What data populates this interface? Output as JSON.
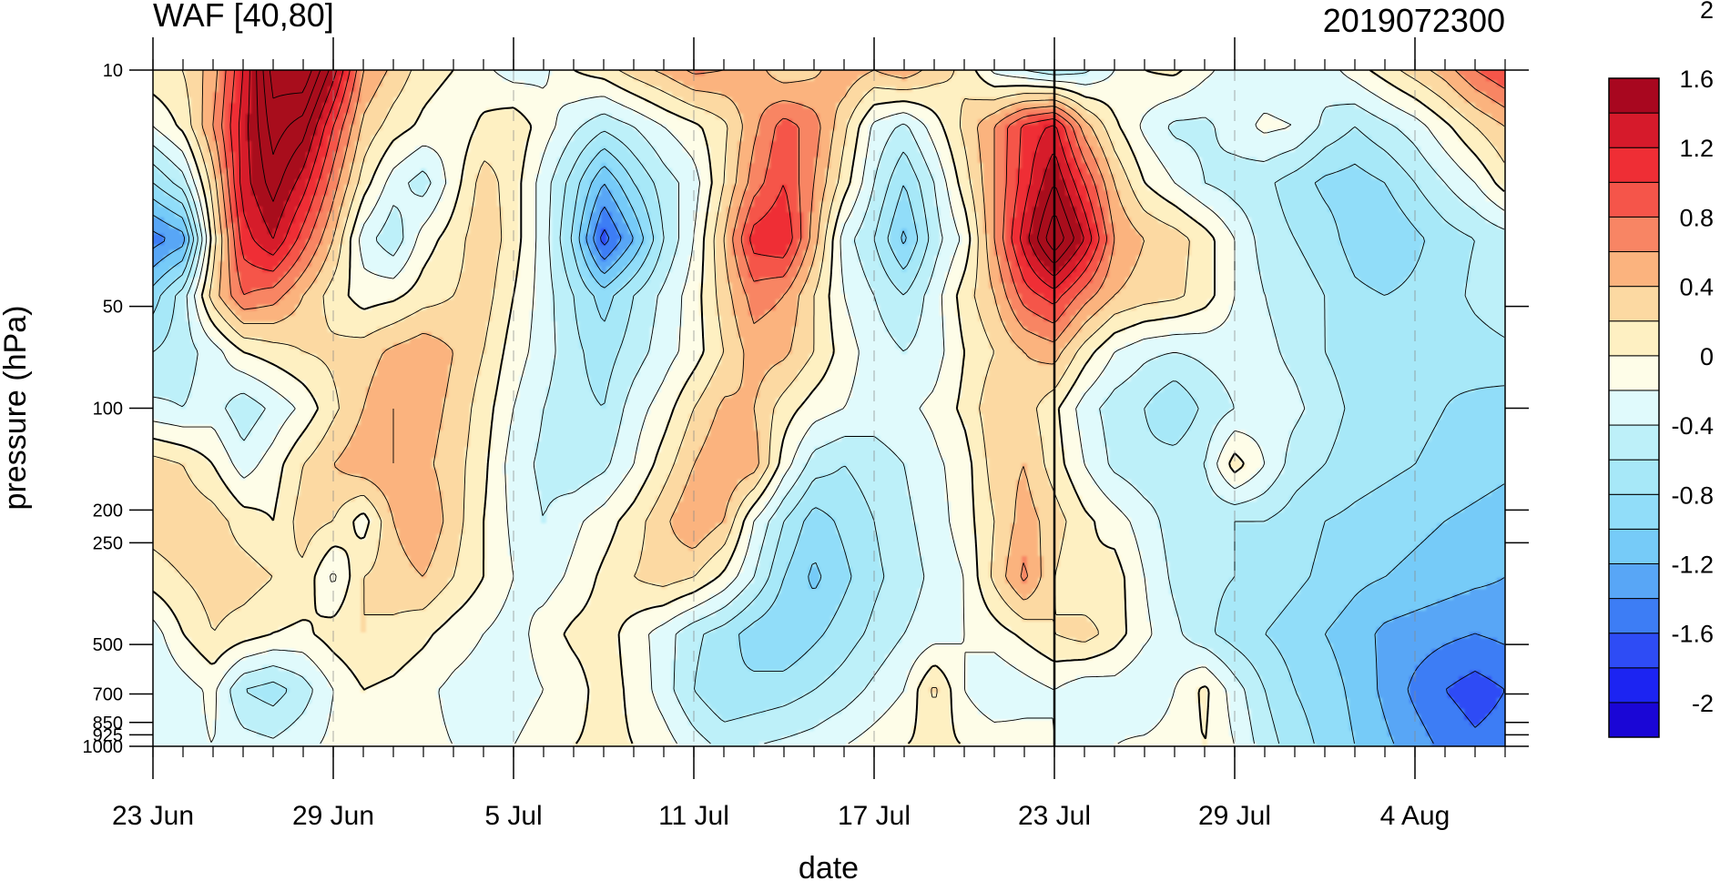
{
  "chart_data": {
    "type": "heatmap",
    "subtype": "filled-contour",
    "title_left": "WAF [40,80]",
    "title_right": "2019072300",
    "xlabel": "date",
    "ylabel": "pressure (hPa)",
    "x_start": "2019-06-23",
    "x_end": "2019-08-07",
    "x_ticks": [
      {
        "date": "2019-06-23",
        "label": "23 Jun"
      },
      {
        "date": "2019-06-29",
        "label": "29 Jun"
      },
      {
        "date": "2019-07-05",
        "label": "5 Jul"
      },
      {
        "date": "2019-07-11",
        "label": "11 Jul"
      },
      {
        "date": "2019-07-17",
        "label": "17 Jul"
      },
      {
        "date": "2019-07-23",
        "label": "23 Jul"
      },
      {
        "date": "2019-07-29",
        "label": "29 Jul"
      },
      {
        "date": "2019-08-04",
        "label": "4 Aug"
      }
    ],
    "analysis_date": "2019-07-23",
    "y_scale": "log",
    "y_reversed": true,
    "ylim": [
      10,
      1000
    ],
    "y_ticks": [
      {
        "value": 10,
        "label": "10"
      },
      {
        "value": 50,
        "label": "50"
      },
      {
        "value": 100,
        "label": "100"
      },
      {
        "value": 200,
        "label": "200"
      },
      {
        "value": 250,
        "label": "250"
      },
      {
        "value": 500,
        "label": "500"
      },
      {
        "value": 700,
        "label": "700"
      },
      {
        "value": 850,
        "label": "850"
      },
      {
        "value": 925,
        "label": "925"
      },
      {
        "value": 1000,
        "label": "1000"
      }
    ],
    "colorbar": {
      "levels": [
        -2.2,
        -2.0,
        -1.8,
        -1.6,
        -1.4,
        -1.2,
        -1.0,
        -0.8,
        -0.6,
        -0.4,
        -0.2,
        0,
        0.2,
        0.4,
        0.6,
        0.8,
        1.0,
        1.2,
        1.4,
        1.6,
        1.8,
        2.0,
        2.2
      ],
      "labels": [
        {
          "value": 2.0,
          "label": "2"
        },
        {
          "value": 1.6,
          "label": "1.6"
        },
        {
          "value": 1.2,
          "label": "1.2"
        },
        {
          "value": 0.8,
          "label": "0.8"
        },
        {
          "value": 0.4,
          "label": "0.4"
        },
        {
          "value": 0,
          "label": "0"
        },
        {
          "value": -0.4,
          "label": "-0.4"
        },
        {
          "value": -0.8,
          "label": "-0.8"
        },
        {
          "value": -1.2,
          "label": "-1.2"
        },
        {
          "value": -1.6,
          "label": "-1.6"
        },
        {
          "value": -2.0,
          "label": "-2"
        }
      ],
      "colors": [
        "#1a06d6",
        "#1c24f2",
        "#2e4cf5",
        "#3d7df5",
        "#58a6f6",
        "#76cbf8",
        "#91ddf9",
        "#a7e8f8",
        "#bdf0f9",
        "#e0fafc",
        "#fefde8",
        "#fef0c2",
        "#fcd9a2",
        "#fbb37e",
        "#f88564",
        "#f5554a",
        "#ef2e35",
        "#d61a2b",
        "#a8071f"
      ]
    },
    "values": [
      [
        0.15,
        0.2,
        0.5,
        1.2,
        2.1,
        2.2,
        1.5,
        0.6,
        0.35,
        0.1,
        0.0,
        -0.15,
        -0.3,
        -0.25,
        0.0,
        0.1,
        0.3,
        0.45,
        0.65,
        0.6,
        0.5,
        0.25,
        0.35,
        0.55,
        0.4,
        0.55,
        0.3,
        0.15,
        -0.25,
        -0.4,
        -0.55,
        -0.45,
        -0.2,
        0.0,
        0.05,
        -0.15,
        -0.3,
        -0.35,
        -0.4,
        -0.3,
        -0.1,
        0.1,
        0.3,
        0.5,
        0.8,
        1.0
      ],
      [
        -0.2,
        0.05,
        0.6,
        1.3,
        1.9,
        1.7,
        1.0,
        0.35,
        0.1,
        -0.05,
        -0.15,
        0.05,
        0.15,
        -0.1,
        -0.35,
        -0.55,
        -0.4,
        -0.2,
        -0.05,
        0.15,
        0.55,
        0.9,
        0.7,
        0.25,
        -0.25,
        -0.45,
        -0.1,
        0.25,
        0.6,
        1.05,
        1.25,
        0.5,
        0.05,
        -0.25,
        -0.45,
        -0.45,
        -0.3,
        -0.15,
        -0.2,
        -0.45,
        -0.6,
        -0.45,
        -0.3,
        -0.05,
        0.2,
        0.4
      ],
      [
        -0.8,
        -0.5,
        0.3,
        1.3,
        1.7,
        1.3,
        0.7,
        0.1,
        -0.3,
        -0.5,
        -0.1,
        0.3,
        0.1,
        -0.3,
        -0.7,
        -1.2,
        -0.8,
        -0.5,
        -0.3,
        0.2,
        0.7,
        1.0,
        0.6,
        0.1,
        -0.4,
        -0.8,
        -0.4,
        0.1,
        0.6,
        1.1,
        1.6,
        1.0,
        0.4,
        0.0,
        -0.2,
        -0.4,
        -0.5,
        -0.55,
        -0.7,
        -0.85,
        -0.9,
        -0.8,
        -0.6,
        -0.4,
        -0.2,
        0.1
      ],
      [
        -1.5,
        -1.3,
        0.1,
        1.1,
        1.4,
        0.9,
        0.4,
        -0.3,
        -0.55,
        -0.1,
        0.1,
        0.35,
        0.1,
        -0.3,
        -0.85,
        -1.7,
        -1.2,
        -0.6,
        -0.2,
        0.4,
        1.1,
        1.2,
        0.5,
        -0.3,
        -0.6,
        -1.05,
        -0.5,
        -0.15,
        0.6,
        1.3,
        2.0,
        1.4,
        0.6,
        0.4,
        0.3,
        0.1,
        -0.2,
        -0.5,
        -0.6,
        -0.7,
        -0.9,
        -1.0,
        -0.85,
        -0.7,
        -0.6,
        -0.5
      ],
      [
        -0.9,
        -0.5,
        0.3,
        0.8,
        0.7,
        0.4,
        0.1,
        -0.1,
        -0.05,
        0.1,
        0.2,
        0.3,
        0.0,
        -0.3,
        -0.6,
        -0.9,
        -0.6,
        -0.35,
        -0.1,
        0.3,
        0.7,
        0.6,
        0.2,
        -0.2,
        -0.4,
        -0.6,
        -0.3,
        0.1,
        0.4,
        0.9,
        1.1,
        0.7,
        0.4,
        0.3,
        0.25,
        0.1,
        -0.2,
        -0.4,
        -0.5,
        -0.6,
        -0.75,
        -0.8,
        -0.75,
        -0.7,
        -0.55,
        -0.45
      ],
      [
        -0.6,
        -0.5,
        -0.3,
        0.0,
        0.1,
        0.2,
        0.25,
        0.3,
        0.45,
        0.55,
        0.4,
        0.2,
        -0.1,
        -0.3,
        -0.55,
        -0.7,
        -0.5,
        -0.3,
        -0.1,
        0.2,
        0.5,
        0.45,
        0.2,
        -0.1,
        -0.3,
        -0.4,
        -0.3,
        0.0,
        0.2,
        0.4,
        0.5,
        0.1,
        -0.2,
        -0.35,
        -0.4,
        -0.35,
        -0.3,
        -0.35,
        -0.45,
        -0.6,
        -0.7,
        -0.75,
        -0.8,
        -0.75,
        -0.7,
        -0.65
      ],
      [
        -0.35,
        -0.4,
        -0.3,
        -0.55,
        -0.35,
        -0.15,
        0.15,
        0.4,
        0.6,
        0.5,
        0.35,
        0.1,
        -0.2,
        -0.4,
        -0.55,
        -0.6,
        -0.3,
        -0.1,
        0.2,
        0.45,
        0.4,
        0.1,
        -0.1,
        -0.2,
        -0.3,
        -0.25,
        -0.15,
        0.05,
        0.35,
        0.3,
        0.05,
        -0.3,
        -0.5,
        -0.6,
        -0.8,
        -0.55,
        -0.4,
        -0.3,
        -0.35,
        -0.5,
        -0.65,
        -0.7,
        -0.75,
        -0.8,
        -0.85,
        -0.9
      ],
      [
        0.3,
        0.2,
        0.0,
        -0.3,
        -0.1,
        0.2,
        0.4,
        0.55,
        0.6,
        0.45,
        0.3,
        0.05,
        -0.3,
        -0.45,
        -0.55,
        -0.45,
        -0.2,
        0.1,
        0.4,
        0.6,
        0.5,
        -0.1,
        -0.5,
        -0.6,
        -0.5,
        -0.4,
        -0.25,
        -0.1,
        0.3,
        0.4,
        0.1,
        -0.2,
        -0.45,
        -0.55,
        -0.5,
        -0.4,
        0.1,
        -0.2,
        -0.5,
        -0.6,
        -0.7,
        -0.75,
        -0.8,
        -0.85,
        -0.9,
        -0.95
      ],
      [
        0.3,
        0.35,
        0.3,
        0.1,
        0.0,
        0.3,
        0.2,
        -0.1,
        0.4,
        0.6,
        0.3,
        0.0,
        -0.25,
        -0.4,
        -0.25,
        -0.1,
        0.1,
        0.35,
        0.6,
        0.4,
        -0.2,
        -0.6,
        -0.9,
        -0.75,
        -0.6,
        -0.45,
        -0.3,
        -0.1,
        0.2,
        0.5,
        0.3,
        0.05,
        -0.1,
        -0.3,
        -0.5,
        -0.55,
        -0.6,
        -0.6,
        -0.7,
        -0.8,
        -0.85,
        -0.9,
        -0.95,
        -1.0,
        -1.05,
        -1.1
      ],
      [
        0.1,
        0.2,
        0.3,
        0.3,
        0.2,
        0.15,
        -0.25,
        0.2,
        0.3,
        0.4,
        0.2,
        0.0,
        -0.2,
        -0.3,
        -0.15,
        0.05,
        0.2,
        0.3,
        0.2,
        -0.05,
        -0.4,
        -0.8,
        -1.05,
        -0.85,
        -0.65,
        -0.5,
        -0.35,
        -0.2,
        0.25,
        0.65,
        0.2,
        0.0,
        0.1,
        -0.2,
        -0.45,
        -0.55,
        -0.6,
        -0.65,
        -0.75,
        -0.85,
        -0.95,
        -1.0,
        -1.05,
        -1.1,
        -1.15,
        -1.2
      ],
      [
        -0.3,
        0.0,
        0.2,
        0.1,
        0.0,
        -0.05,
        0.1,
        0.2,
        0.15,
        0.05,
        -0.1,
        -0.2,
        -0.3,
        -0.1,
        0.05,
        0.1,
        -0.1,
        -0.3,
        -0.55,
        -0.7,
        -0.9,
        -1.0,
        -0.85,
        -0.7,
        -0.55,
        -0.4,
        -0.3,
        -0.2,
        -0.1,
        0.05,
        0.2,
        0.3,
        0.1,
        -0.15,
        -0.35,
        -0.55,
        -0.7,
        -0.8,
        -0.9,
        -1.0,
        -1.1,
        -1.25,
        -1.3,
        -1.35,
        -1.4,
        -1.35
      ],
      [
        -0.4,
        -0.3,
        -0.15,
        -0.6,
        -0.7,
        -0.5,
        -0.2,
        0.0,
        -0.05,
        -0.15,
        -0.25,
        -0.3,
        -0.3,
        -0.2,
        -0.1,
        0.1,
        -0.05,
        -0.3,
        -0.6,
        -0.8,
        -0.75,
        -0.7,
        -0.6,
        -0.5,
        -0.35,
        -0.2,
        0.25,
        -0.2,
        -0.4,
        -0.3,
        -0.2,
        -0.35,
        -0.3,
        -0.4,
        -0.2,
        0.05,
        -0.3,
        -0.6,
        -0.8,
        -0.9,
        -1.05,
        -1.25,
        -1.45,
        -1.6,
        -1.7,
        -1.6
      ],
      [
        -0.3,
        -0.25,
        -0.2,
        -0.3,
        -0.35,
        -0.25,
        -0.15,
        -0.1,
        -0.1,
        -0.15,
        -0.2,
        -0.25,
        -0.2,
        -0.1,
        0.0,
        0.05,
        0.0,
        -0.1,
        -0.3,
        -0.45,
        -0.4,
        -0.35,
        -0.3,
        -0.2,
        -0.1,
        0.0,
        0.05,
        0.0,
        -0.05,
        -0.1,
        -0.2,
        -0.25,
        -0.2,
        -0.15,
        -0.1,
        0.0,
        -0.2,
        -0.5,
        -0.7,
        -0.85,
        -1.0,
        -1.15,
        -1.3,
        -1.45,
        -1.55,
        -1.5
      ]
    ]
  }
}
